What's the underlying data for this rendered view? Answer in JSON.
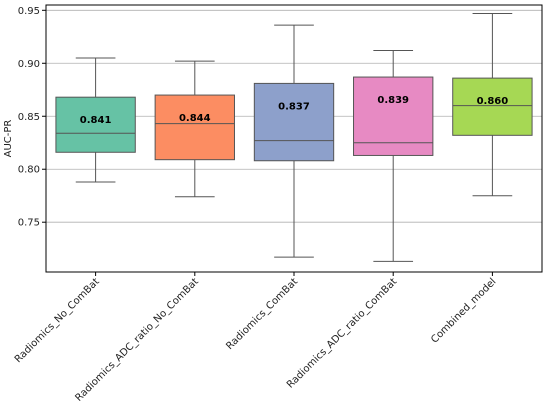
{
  "chart_data": {
    "type": "box",
    "title": "",
    "xlabel": "",
    "ylabel": "AUC-PR",
    "ylim": [
      0.703,
      0.955
    ],
    "yticks": [
      0.75,
      0.8,
      0.85,
      0.9,
      0.95
    ],
    "ytick_labels": [
      "0.75",
      "0.80",
      "0.85",
      "0.90",
      "0.95"
    ],
    "grid": "y",
    "categories": [
      "Radiomics_No_ComBat",
      "Radiomics_ADC_ratio_No_ComBat",
      "Radiomics_ComBat",
      "Radiomics_ADC_ratio_ComBat",
      "Combined_model"
    ],
    "boxes": [
      {
        "whisker_low": 0.788,
        "q1": 0.816,
        "median": 0.834,
        "q3": 0.868,
        "whisker_high": 0.905,
        "mean_label": "0.841",
        "color": "#66c2a5"
      },
      {
        "whisker_low": 0.774,
        "q1": 0.809,
        "median": 0.843,
        "q3": 0.87,
        "whisker_high": 0.902,
        "mean_label": "0.844",
        "color": "#fc8d62"
      },
      {
        "whisker_low": 0.717,
        "q1": 0.808,
        "median": 0.827,
        "q3": 0.881,
        "whisker_high": 0.936,
        "mean_label": "0.837",
        "color": "#8da0cb"
      },
      {
        "whisker_low": 0.713,
        "q1": 0.813,
        "median": 0.825,
        "q3": 0.887,
        "whisker_high": 0.912,
        "mean_label": "0.839",
        "color": "#e78ac3"
      },
      {
        "whisker_low": 0.775,
        "q1": 0.832,
        "median": 0.86,
        "q3": 0.886,
        "whisker_high": 0.947,
        "mean_label": "0.860",
        "color": "#a6d854"
      }
    ]
  }
}
